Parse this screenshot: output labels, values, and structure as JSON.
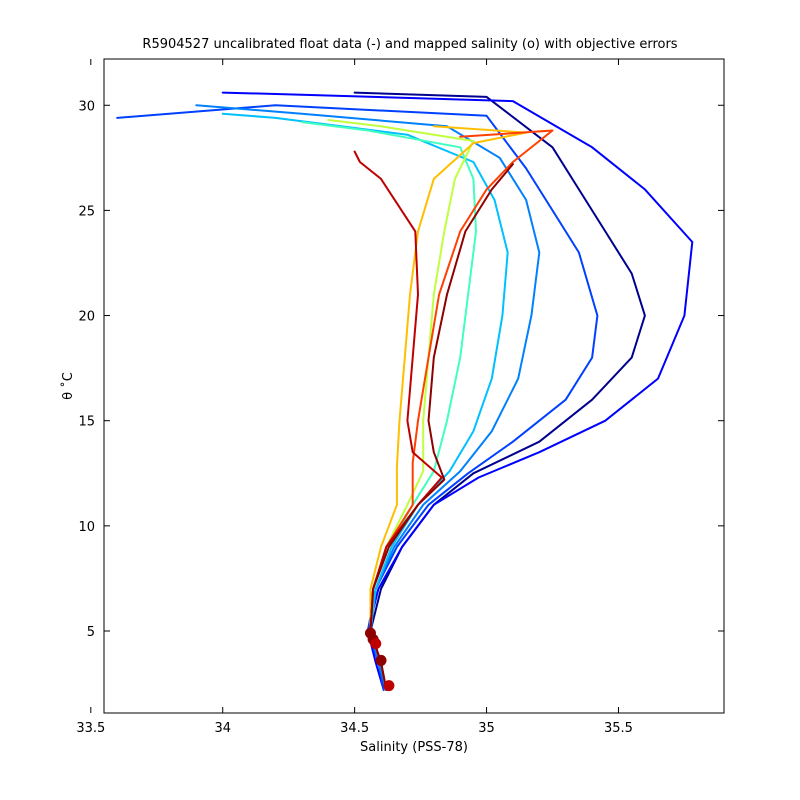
{
  "chart_data": {
    "type": "line",
    "title": "R5904527 uncalibrated float data (-) and mapped salinity (o) with objective errors",
    "xlabel": "Salinity (PSS-78)",
    "ylabel": "θ ˚C",
    "xlim": [
      33.55,
      35.9
    ],
    "ylim": [
      1.1,
      32.2
    ],
    "xticks": [
      33.5,
      34,
      34.5,
      35,
      35.5
    ],
    "xtick_labels": [
      "33.5",
      "34",
      "34.5",
      "35",
      "35.5"
    ],
    "yticks": [
      5,
      10,
      15,
      20,
      25,
      30
    ],
    "ytick_labels": [
      "5",
      "10",
      "15",
      "20",
      "25",
      "30"
    ],
    "grid": false,
    "colormap": "jet (profile number, early = blue, late = dark red)",
    "series": [
      {
        "color": "#00008f",
        "values": [
          [
            34.62,
            2.2
          ],
          [
            34.6,
            3.5
          ],
          [
            34.56,
            5
          ],
          [
            34.6,
            7
          ],
          [
            34.68,
            9
          ],
          [
            34.8,
            11
          ],
          [
            34.95,
            12.5
          ],
          [
            35.2,
            14
          ],
          [
            35.4,
            16
          ],
          [
            35.55,
            18
          ],
          [
            35.6,
            20
          ],
          [
            35.55,
            22
          ],
          [
            35.45,
            24
          ],
          [
            35.35,
            26
          ],
          [
            35.25,
            28
          ],
          [
            35.0,
            30.4
          ],
          [
            34.5,
            30.6
          ]
        ]
      },
      {
        "color": "#0000ff",
        "values": [
          [
            34.61,
            2.2
          ],
          [
            34.58,
            3.5
          ],
          [
            34.55,
            5
          ],
          [
            34.59,
            7
          ],
          [
            34.68,
            9
          ],
          [
            34.8,
            11
          ],
          [
            34.97,
            12.3
          ],
          [
            35.2,
            13.5
          ],
          [
            35.45,
            15
          ],
          [
            35.65,
            17
          ],
          [
            35.75,
            20
          ],
          [
            35.78,
            23.5
          ],
          [
            35.6,
            26
          ],
          [
            35.4,
            28
          ],
          [
            35.1,
            30.2
          ],
          [
            34.3,
            30.5
          ],
          [
            34.0,
            30.6
          ]
        ]
      },
      {
        "color": "#0040ff",
        "values": [
          [
            34.61,
            2.2
          ],
          [
            34.59,
            3.5
          ],
          [
            34.55,
            5
          ],
          [
            34.58,
            7
          ],
          [
            34.66,
            9
          ],
          [
            34.78,
            11
          ],
          [
            34.93,
            12.5
          ],
          [
            35.1,
            14
          ],
          [
            35.3,
            16
          ],
          [
            35.4,
            18
          ],
          [
            35.42,
            20
          ],
          [
            35.35,
            23
          ],
          [
            35.25,
            25
          ],
          [
            35.15,
            27
          ],
          [
            35.0,
            29.5
          ],
          [
            34.2,
            30.0
          ],
          [
            33.6,
            29.4
          ]
        ]
      },
      {
        "color": "#0080ff",
        "values": [
          [
            34.62,
            2.2
          ],
          [
            34.59,
            3.5
          ],
          [
            34.56,
            5
          ],
          [
            34.58,
            7
          ],
          [
            34.65,
            9
          ],
          [
            34.76,
            11
          ],
          [
            34.9,
            12.6
          ],
          [
            35.02,
            14.5
          ],
          [
            35.12,
            17
          ],
          [
            35.17,
            20
          ],
          [
            35.2,
            23
          ],
          [
            35.15,
            25.5
          ],
          [
            35.05,
            27.5
          ],
          [
            34.85,
            29
          ],
          [
            34.3,
            29.6
          ],
          [
            33.9,
            30.0
          ]
        ]
      },
      {
        "color": "#00c0ff",
        "values": [
          [
            34.62,
            2.2
          ],
          [
            34.6,
            3.5
          ],
          [
            34.56,
            5
          ],
          [
            34.58,
            7
          ],
          [
            34.64,
            9
          ],
          [
            34.74,
            11
          ],
          [
            34.86,
            12.6
          ],
          [
            34.95,
            14.5
          ],
          [
            35.02,
            17
          ],
          [
            35.06,
            20
          ],
          [
            35.08,
            23
          ],
          [
            35.03,
            25.5
          ],
          [
            34.95,
            27.3
          ],
          [
            34.7,
            28.6
          ],
          [
            34.2,
            29.4
          ],
          [
            34.0,
            29.6
          ]
        ]
      },
      {
        "color": "#40ffbf",
        "values": [
          [
            34.62,
            2.2
          ],
          [
            34.6,
            3.5
          ],
          [
            34.56,
            5
          ],
          [
            34.57,
            7
          ],
          [
            34.63,
            9
          ],
          [
            34.72,
            11
          ],
          [
            34.8,
            12.6
          ],
          [
            34.85,
            15
          ],
          [
            34.9,
            18
          ],
          [
            34.93,
            21
          ],
          [
            34.96,
            24
          ],
          [
            34.95,
            26.5
          ],
          [
            34.9,
            28
          ],
          [
            34.55,
            28.8
          ],
          [
            34.3,
            29.2
          ]
        ]
      },
      {
        "color": "#c0ff40",
        "values": [
          [
            34.62,
            2.2
          ],
          [
            34.6,
            3.5
          ],
          [
            34.56,
            5
          ],
          [
            34.57,
            7
          ],
          [
            34.62,
            9
          ],
          [
            34.7,
            11
          ],
          [
            34.76,
            12.6
          ],
          [
            34.76,
            15
          ],
          [
            34.78,
            18
          ],
          [
            34.8,
            21
          ],
          [
            34.84,
            24
          ],
          [
            34.88,
            26.5
          ],
          [
            34.95,
            28.3
          ],
          [
            34.6,
            29.0
          ],
          [
            34.4,
            29.3
          ]
        ]
      },
      {
        "color": "#ffbf00",
        "values": [
          [
            34.62,
            2.2
          ],
          [
            34.6,
            3.5
          ],
          [
            34.56,
            5
          ],
          [
            34.56,
            7
          ],
          [
            34.6,
            9
          ],
          [
            34.66,
            11
          ],
          [
            34.66,
            12.8
          ],
          [
            34.67,
            15
          ],
          [
            34.69,
            18
          ],
          [
            34.71,
            21
          ],
          [
            34.74,
            24
          ],
          [
            34.8,
            26.5
          ],
          [
            34.95,
            28.2
          ],
          [
            35.15,
            28.7
          ],
          [
            34.8,
            29.0
          ]
        ]
      },
      {
        "color": "#ff4000",
        "values": [
          [
            34.62,
            2.2
          ],
          [
            34.6,
            3.5
          ],
          [
            34.56,
            5
          ],
          [
            34.57,
            7
          ],
          [
            34.62,
            9
          ],
          [
            34.72,
            11
          ],
          [
            34.72,
            13
          ],
          [
            34.74,
            15
          ],
          [
            34.78,
            18
          ],
          [
            34.82,
            21
          ],
          [
            34.9,
            24
          ],
          [
            35.0,
            26
          ],
          [
            35.1,
            27.3
          ],
          [
            35.25,
            28.8
          ],
          [
            34.9,
            28.5
          ]
        ]
      },
      {
        "color": "#bf0000",
        "values": [
          [
            34.62,
            2.2
          ],
          [
            34.6,
            3.5
          ],
          [
            34.56,
            5
          ],
          [
            34.57,
            7
          ],
          [
            34.62,
            9
          ],
          [
            34.74,
            11
          ],
          [
            34.83,
            12.3
          ],
          [
            34.72,
            13.5
          ],
          [
            34.7,
            15
          ],
          [
            34.72,
            18
          ],
          [
            34.74,
            21
          ],
          [
            34.73,
            24
          ],
          [
            34.6,
            26.5
          ],
          [
            34.52,
            27.3
          ],
          [
            34.5,
            27.8
          ]
        ]
      },
      {
        "color": "#8f0000",
        "values": [
          [
            34.62,
            2.2
          ],
          [
            34.6,
            3.5
          ],
          [
            34.56,
            5
          ],
          [
            34.57,
            7
          ],
          [
            34.63,
            9
          ],
          [
            34.74,
            11
          ],
          [
            34.84,
            12.2
          ],
          [
            34.8,
            13.5
          ],
          [
            34.78,
            15
          ],
          [
            34.8,
            18
          ],
          [
            34.85,
            21
          ],
          [
            34.92,
            24
          ],
          [
            35.02,
            26
          ],
          [
            35.1,
            27.2
          ]
        ]
      }
    ],
    "mapped_points": [
      {
        "x": 34.56,
        "y": 4.9,
        "color": "#8f0000"
      },
      {
        "x": 34.57,
        "y": 4.6,
        "color": "#8f0000"
      },
      {
        "x": 34.58,
        "y": 4.4,
        "color": "#bf0000"
      },
      {
        "x": 34.6,
        "y": 3.6,
        "color": "#8f0000"
      },
      {
        "x": 34.63,
        "y": 2.4,
        "color": "#bf0000"
      }
    ]
  }
}
